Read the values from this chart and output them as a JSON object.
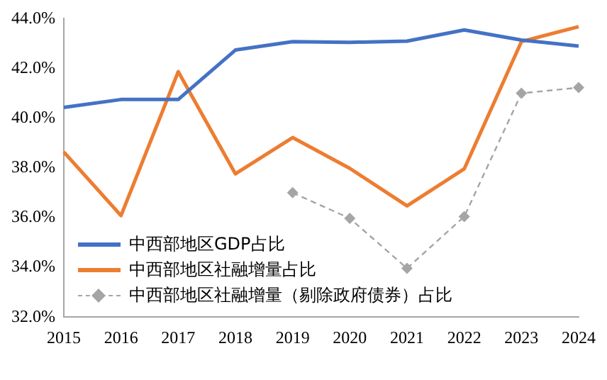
{
  "chart_data": {
    "type": "line",
    "categories": [
      "2015",
      "2016",
      "2017",
      "2018",
      "2019",
      "2020",
      "2021",
      "2022",
      "2023",
      "2024"
    ],
    "series": [
      {
        "name": "中西部地区GDP占比",
        "color": "#4472c4",
        "values": [
          40.43,
          40.75,
          40.75,
          42.74,
          43.08,
          43.05,
          43.1,
          43.55,
          43.14,
          42.9
        ],
        "marker": "none",
        "line_style": "solid"
      },
      {
        "name": "中西部地区社融增量占比",
        "color": "#ed7d31",
        "values": [
          38.64,
          36.08,
          41.87,
          37.76,
          39.22,
          37.98,
          36.47,
          37.96,
          43.08,
          43.68
        ],
        "marker": "none",
        "line_style": "solid"
      },
      {
        "name": "中西部地区社融增量（剔除政府债券）占比",
        "color": "#a5a5a5",
        "values": [
          null,
          null,
          null,
          null,
          37.0,
          35.97,
          33.96,
          36.04,
          41.0,
          41.23
        ],
        "marker": "diamond",
        "line_style": "dashed"
      }
    ],
    "ylim": [
      32,
      44
    ],
    "yticks": [
      {
        "value": 32,
        "label": "32.0%"
      },
      {
        "value": 34,
        "label": "34.0%"
      },
      {
        "value": 36,
        "label": "36.0%"
      },
      {
        "value": 38,
        "label": "38.0%"
      },
      {
        "value": 40,
        "label": "40.0%"
      },
      {
        "value": 42,
        "label": "42.0%"
      },
      {
        "value": 44,
        "label": "44.0%"
      }
    ],
    "grid": false,
    "legend": "bottom left"
  }
}
